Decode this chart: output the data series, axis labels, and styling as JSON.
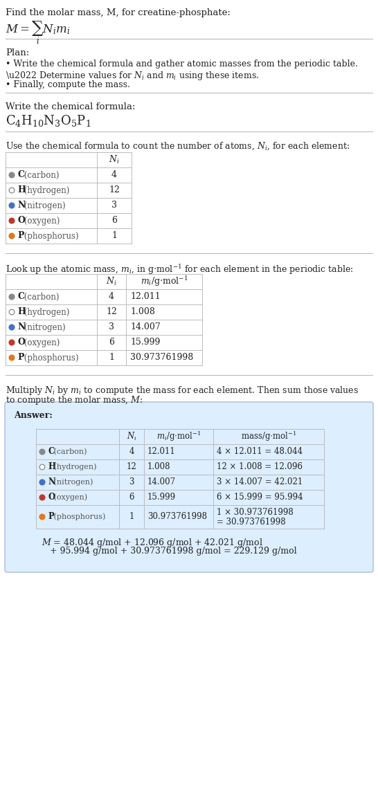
{
  "title_line": "Find the molar mass, M, for creatine-phosphate:",
  "plan_header": "Plan:",
  "plan_bullets": [
    "• Write the chemical formula and gather atomic masses from the periodic table.",
    "• Determine values for N_i and m_i using these items.",
    "• Finally, compute the mass."
  ],
  "formula_section_label": "Write the chemical formula:",
  "table1_header": "Use the chemical formula to count the number of atoms, N_i, for each element:",
  "table2_header": "Look up the atomic mass, m_i, in g·mol⁻¹ for each element in the periodic table:",
  "table3_header_line1": "Multiply N_i by m_i to compute the mass for each element. Then sum those values",
  "table3_header_line2": "to compute the molar mass, M:",
  "elements": [
    "C (carbon)",
    "H (hydrogen)",
    "N (nitrogen)",
    "O (oxygen)",
    "P (phosphorus)"
  ],
  "element_symbols": [
    "C",
    "H",
    "N",
    "O",
    "P"
  ],
  "dot_colors": [
    "#888888",
    "#ffffff",
    "#4472c4",
    "#c0392b",
    "#e07820"
  ],
  "dot_filled": [
    true,
    false,
    true,
    true,
    true
  ],
  "dot_edge_colors": [
    "#888888",
    "#999999",
    "#4472c4",
    "#c0392b",
    "#e07820"
  ],
  "Ni_values": [
    4,
    12,
    3,
    6,
    1
  ],
  "mi_values": [
    "12.011",
    "1.008",
    "14.007",
    "15.999",
    "30.973761998"
  ],
  "mass_exprs_line1": [
    "4 × 12.011 = 48.044",
    "12 × 1.008 = 12.096",
    "3 × 14.007 = 42.021",
    "6 × 15.999 = 95.994",
    "1 × 30.973761998"
  ],
  "mass_exprs_line2": [
    "",
    "",
    "",
    "",
    "= 30.973761998"
  ],
  "answer_box_color": "#ddeeff",
  "answer_box_edge": "#aabbdd",
  "final_line1": "M = 48.044 g/mol + 12.096 g/mol + 42.021 g/mol",
  "final_line2": "    + 95.994 g/mol + 30.973761998 g/mol = 229.129 g/mol",
  "bg_color": "#ffffff",
  "text_color": "#222222",
  "gray_text": "#555555",
  "sep_color": "#bbbbbb",
  "table_line_color": "#bbbbbb"
}
